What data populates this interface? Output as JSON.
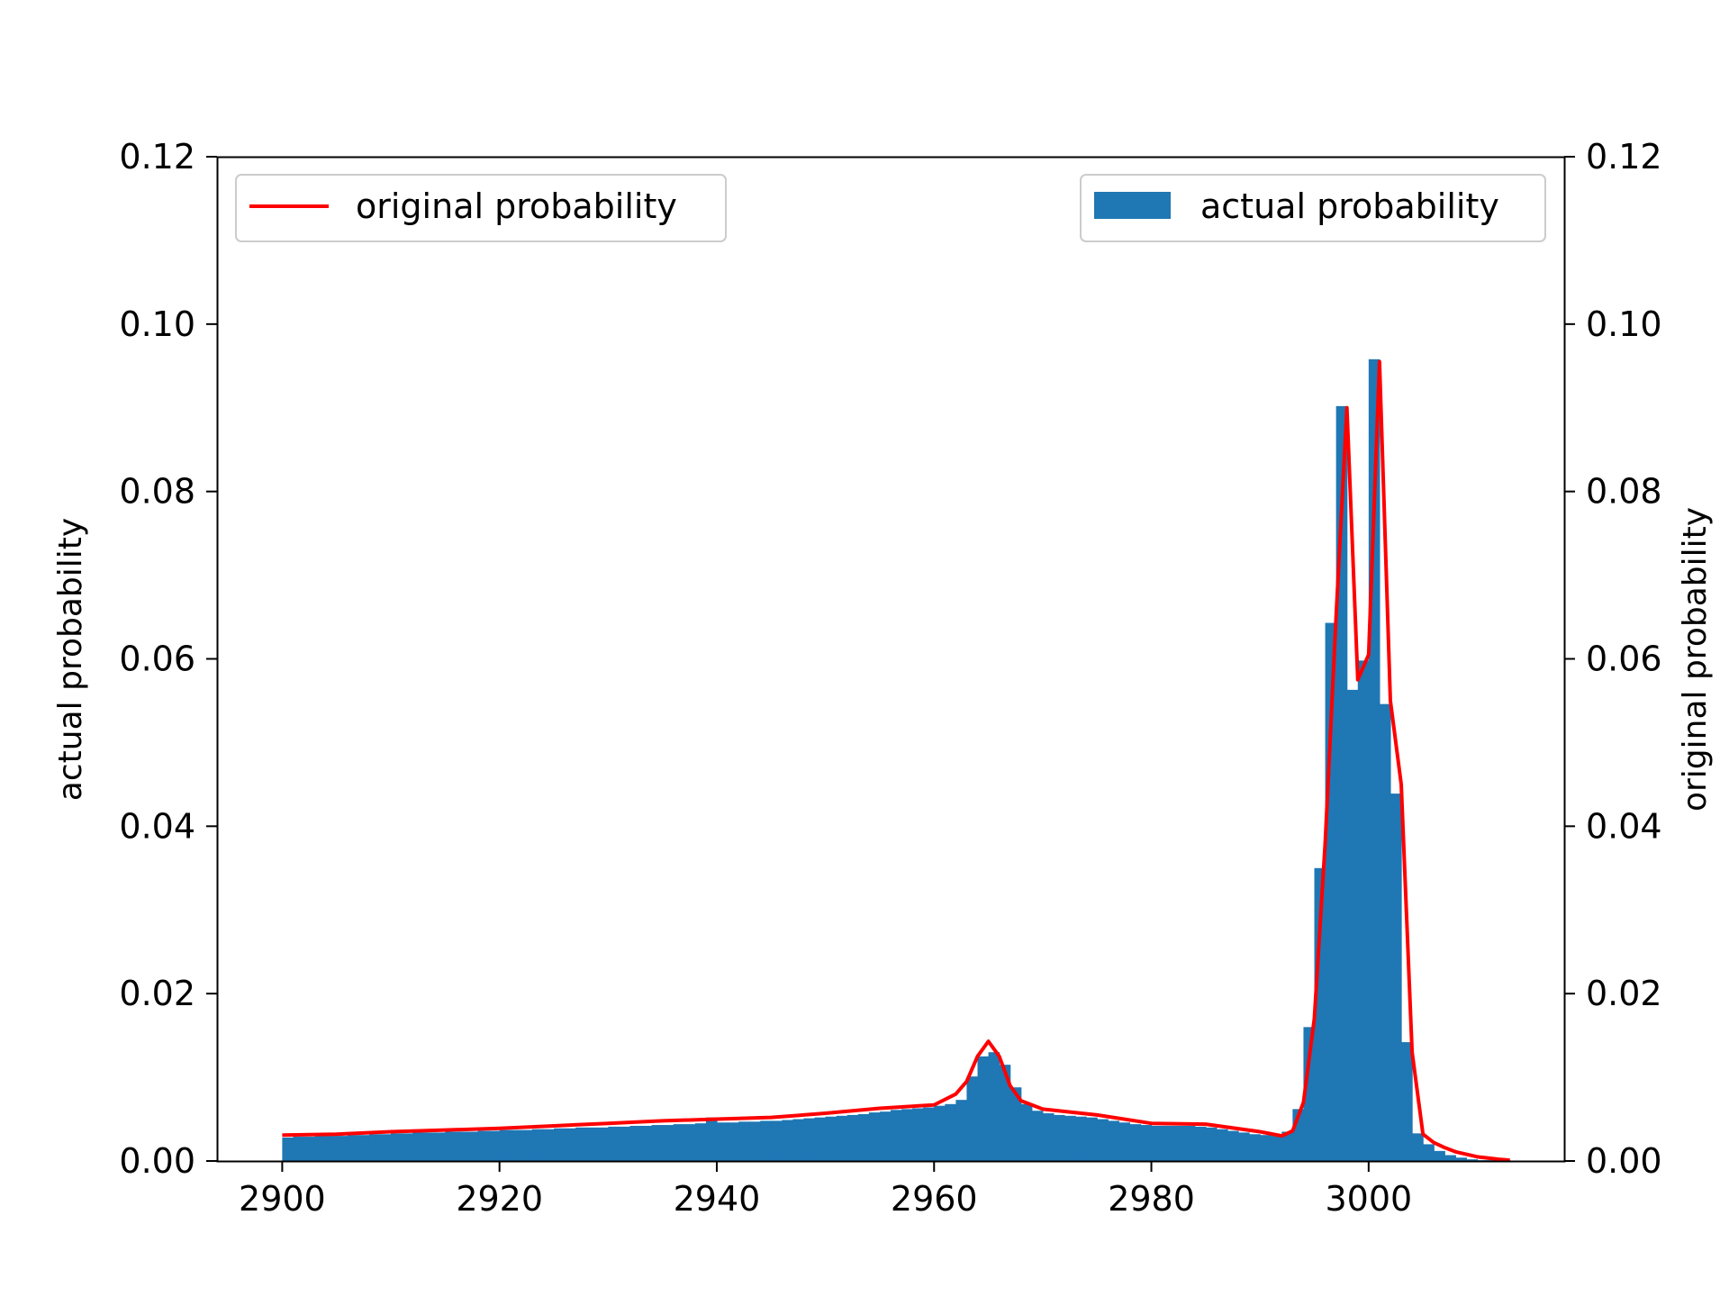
{
  "chart_data": {
    "type": "bar",
    "title": "",
    "xlabel": "",
    "ylabel_left": "actual probability",
    "ylabel_right": "original probability",
    "xlim": [
      2894,
      3018
    ],
    "ylim_left": [
      0,
      0.12
    ],
    "ylim_right": [
      0,
      0.12
    ],
    "xticks": [
      "2900",
      "2920",
      "2940",
      "2960",
      "2980",
      "3000"
    ],
    "yticks_left": [
      "0.00",
      "0.02",
      "0.04",
      "0.06",
      "0.08",
      "0.10",
      "0.12"
    ],
    "yticks_right": [
      "0.00",
      "0.02",
      "0.04",
      "0.06",
      "0.08",
      "0.10",
      "0.12"
    ],
    "grid": false,
    "legends": [
      {
        "label": "original probability",
        "placement": "upper-left"
      },
      {
        "label": "actual probability",
        "placement": "upper-right"
      }
    ],
    "colors": {
      "bars": "#1f77b4",
      "line": "#ff0000"
    },
    "series": [
      {
        "name": "actual probability",
        "kind": "histogram",
        "axis": "left",
        "bin_width": 1,
        "x_start": 2900,
        "values": [
          0.0028,
          0.0029,
          0.0029,
          0.003,
          0.003,
          0.003,
          0.0031,
          0.0031,
          0.0032,
          0.0032,
          0.0033,
          0.0033,
          0.0034,
          0.0034,
          0.0034,
          0.0035,
          0.0035,
          0.0035,
          0.0036,
          0.0036,
          0.0037,
          0.0037,
          0.0037,
          0.0038,
          0.0038,
          0.0039,
          0.0039,
          0.004,
          0.004,
          0.004,
          0.0041,
          0.0041,
          0.0042,
          0.0042,
          0.0043,
          0.0043,
          0.0044,
          0.0044,
          0.0045,
          0.0052,
          0.0046,
          0.0046,
          0.0047,
          0.0047,
          0.0048,
          0.0048,
          0.0049,
          0.005,
          0.0051,
          0.0052,
          0.0053,
          0.0054,
          0.0055,
          0.0056,
          0.0058,
          0.0059,
          0.0061,
          0.0062,
          0.0063,
          0.0064,
          0.0066,
          0.0068,
          0.0073,
          0.0101,
          0.0125,
          0.013,
          0.0115,
          0.0088,
          0.0068,
          0.006,
          0.0057,
          0.0055,
          0.0054,
          0.0053,
          0.0052,
          0.005,
          0.0048,
          0.0046,
          0.0044,
          0.0043,
          0.0042,
          0.0042,
          0.0042,
          0.0042,
          0.0041,
          0.004,
          0.0038,
          0.0036,
          0.0034,
          0.0032,
          0.0031,
          0.003,
          0.0035,
          0.0062,
          0.016,
          0.035,
          0.0643,
          0.0902,
          0.0563,
          0.0598,
          0.0958,
          0.0546,
          0.0439,
          0.0142,
          0.0033,
          0.002,
          0.0012,
          0.0007,
          0.0004,
          0.0002,
          0.0001,
          0.0001,
          0.0001,
          0.0
        ]
      },
      {
        "name": "original probability",
        "kind": "line",
        "axis": "right",
        "x": [
          2900,
          2905,
          2910,
          2915,
          2920,
          2925,
          2930,
          2935,
          2940,
          2945,
          2950,
          2955,
          2960,
          2962,
          2963,
          2964,
          2965,
          2966,
          2967,
          2968,
          2970,
          2975,
          2980,
          2985,
          2990,
          2992,
          2993,
          2994,
          2995,
          2996,
          2997,
          2998,
          2999,
          3000,
          3001,
          3002,
          3003,
          3004,
          3005,
          3006,
          3007,
          3008,
          3010,
          3012,
          3013
        ],
        "y": [
          0.0031,
          0.0032,
          0.0035,
          0.0037,
          0.0039,
          0.0042,
          0.0045,
          0.0048,
          0.005,
          0.0052,
          0.0057,
          0.0063,
          0.0067,
          0.008,
          0.0095,
          0.0125,
          0.0143,
          0.0125,
          0.009,
          0.0072,
          0.0062,
          0.0055,
          0.0045,
          0.0044,
          0.0035,
          0.003,
          0.0036,
          0.007,
          0.017,
          0.038,
          0.065,
          0.09,
          0.0575,
          0.0605,
          0.0955,
          0.055,
          0.045,
          0.013,
          0.0032,
          0.0022,
          0.0016,
          0.0011,
          0.0005,
          0.0002,
          0.0001
        ]
      }
    ]
  }
}
